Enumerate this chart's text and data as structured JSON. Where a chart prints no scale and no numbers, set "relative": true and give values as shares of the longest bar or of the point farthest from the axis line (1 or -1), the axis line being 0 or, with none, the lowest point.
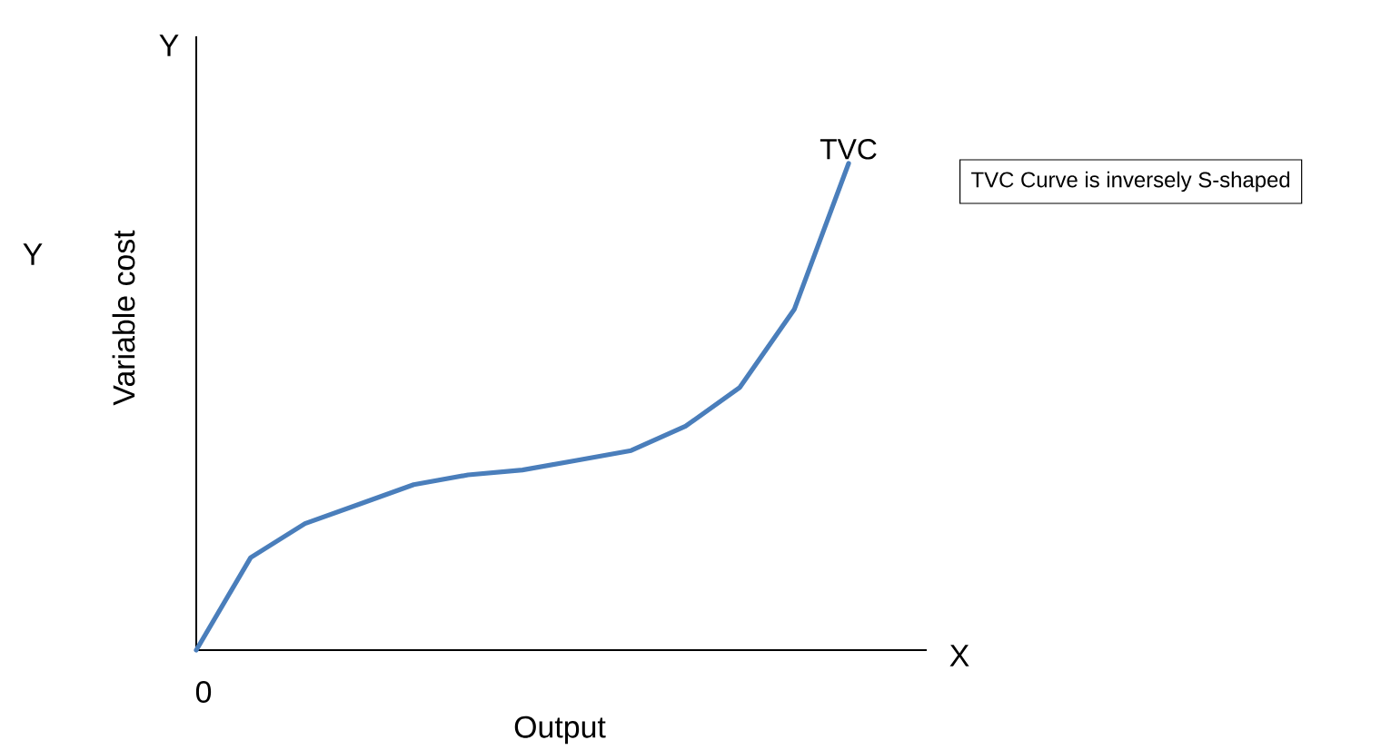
{
  "chart_data": {
    "type": "line",
    "xlabel": "Output",
    "ylabel": "Variable cost",
    "annotations": [
      "Y",
      "Y",
      "X",
      "0",
      "TVC Curve is inversely S-shaped"
    ],
    "relative": true,
    "categories": [
      null,
      null,
      null,
      null,
      null,
      null,
      null,
      null,
      null,
      null,
      null,
      null,
      null
    ],
    "series": [
      {
        "name": "TVC",
        "color": "#4a7ebb",
        "values": [
          0,
          0.19,
          0.26,
          0.3,
          0.34,
          0.36,
          0.37,
          0.39,
          0.41,
          0.46,
          0.54,
          0.7,
          1
        ]
      }
    ]
  }
}
